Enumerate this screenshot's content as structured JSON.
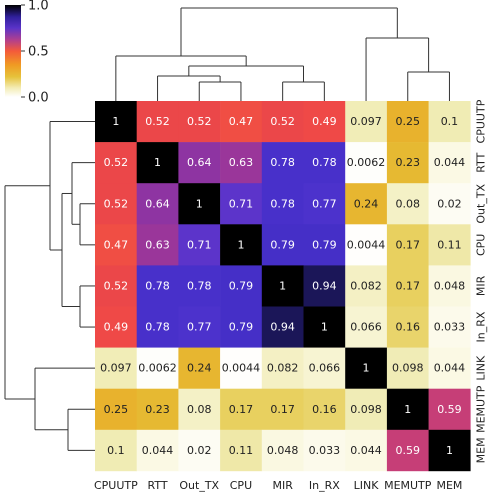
{
  "chart_data": {
    "type": "heatmap",
    "title": "",
    "row_labels": [
      "CPUUTP",
      "RTT",
      "Out_TX",
      "CPU",
      "MIR",
      "In_RX",
      "LINK",
      "MEMUTP",
      "MEM"
    ],
    "col_labels": [
      "CPUUTP",
      "RTT",
      "Out_TX",
      "CPU",
      "MIR",
      "In_RX",
      "LINK",
      "MEMUTP",
      "MEM"
    ],
    "values": [
      [
        1,
        0.52,
        0.52,
        0.47,
        0.52,
        0.49,
        0.097,
        0.25,
        0.1
      ],
      [
        0.52,
        1,
        0.64,
        0.63,
        0.78,
        0.78,
        0.0062,
        0.23,
        0.044
      ],
      [
        0.52,
        0.64,
        1,
        0.71,
        0.78,
        0.77,
        0.24,
        0.08,
        0.02
      ],
      [
        0.47,
        0.63,
        0.71,
        1,
        0.79,
        0.79,
        0.0044,
        0.17,
        0.11
      ],
      [
        0.52,
        0.78,
        0.78,
        0.79,
        1,
        0.94,
        0.082,
        0.17,
        0.048
      ],
      [
        0.49,
        0.78,
        0.77,
        0.79,
        0.94,
        1,
        0.066,
        0.16,
        0.033
      ],
      [
        0.097,
        0.0062,
        0.24,
        0.0044,
        0.082,
        0.066,
        1,
        0.098,
        0.044
      ],
      [
        0.25,
        0.23,
        0.08,
        0.17,
        0.17,
        0.16,
        0.098,
        1,
        0.59
      ],
      [
        0.1,
        0.044,
        0.02,
        0.11,
        0.048,
        0.033,
        0.044,
        0.59,
        1
      ]
    ],
    "value_labels": [
      [
        "1",
        "0.52",
        "0.52",
        "0.47",
        "0.52",
        "0.49",
        "0.097",
        "0.25",
        "0.1"
      ],
      [
        "0.52",
        "1",
        "0.64",
        "0.63",
        "0.78",
        "0.78",
        "0.0062",
        "0.23",
        "0.044"
      ],
      [
        "0.52",
        "0.64",
        "1",
        "0.71",
        "0.78",
        "0.77",
        "0.24",
        "0.08",
        "0.02"
      ],
      [
        "0.47",
        "0.63",
        "0.71",
        "1",
        "0.79",
        "0.79",
        "0.0044",
        "0.17",
        "0.11"
      ],
      [
        "0.52",
        "0.78",
        "0.78",
        "0.79",
        "1",
        "0.94",
        "0.082",
        "0.17",
        "0.048"
      ],
      [
        "0.49",
        "0.78",
        "0.77",
        "0.79",
        "0.94",
        "1",
        "0.066",
        "0.16",
        "0.033"
      ],
      [
        "0.097",
        "0.0062",
        "0.24",
        "0.0044",
        "0.082",
        "0.066",
        "1",
        "0.098",
        "0.044"
      ],
      [
        "0.25",
        "0.23",
        "0.08",
        "0.17",
        "0.17",
        "0.16",
        "0.098",
        "1",
        "0.59"
      ],
      [
        "0.1",
        "0.044",
        "0.02",
        "0.11",
        "0.048",
        "0.033",
        "0.044",
        "0.59",
        "1"
      ]
    ],
    "colorbar": {
      "colormap": "CMRmap_r",
      "range": [
        0,
        1
      ],
      "ticks": [
        0.0,
        0.5,
        1.0
      ],
      "tick_labels": [
        "0.0",
        "0.5",
        "1.0"
      ]
    },
    "dendrogram": {
      "method": "hierarchical clustering",
      "merges": [
        [
          "MIR",
          "In_RX"
        ],
        [
          "Out_TX",
          "CPU"
        ],
        [
          "RTT",
          "Out_TX+CPU"
        ],
        [
          "RTT+Out_TX+CPU",
          "MIR+In_RX"
        ],
        [
          "CPUUTP",
          "RTT+Out_TX+CPU+MIR+In_RX"
        ],
        [
          "MEMUTP",
          "MEM"
        ],
        [
          "LINK",
          "MEMUTP+MEM"
        ],
        [
          "CPUUTP+RTT+Out_TX+CPU+MIR+In_RX",
          "LINK+MEMUTP+MEM"
        ]
      ]
    }
  }
}
